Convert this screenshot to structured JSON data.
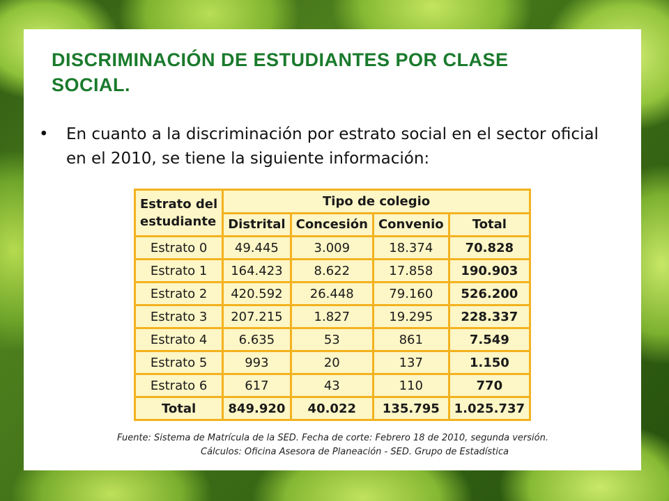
{
  "slide": {
    "title": "DISCRIMINACIÓN DE ESTUDIANTES POR CLASE SOCIAL.",
    "bullet": "En cuanto a la discriminación por estrato social en el sector oficial en el 2010, se tiene la siguiente información:",
    "bullet_symbol": "•"
  },
  "table": {
    "row_header_label": "Estrato del estudiante",
    "group_header": "Tipo de colegio",
    "columns": [
      "Distrital",
      "Concesión",
      "Convenio",
      "Total"
    ],
    "rows": [
      {
        "label": "Estrato 0",
        "values": [
          "49.445",
          "3.009",
          "18.374",
          "70.828"
        ]
      },
      {
        "label": "Estrato 1",
        "values": [
          "164.423",
          "8.622",
          "17.858",
          "190.903"
        ]
      },
      {
        "label": "Estrato 2",
        "values": [
          "420.592",
          "26.448",
          "79.160",
          "526.200"
        ]
      },
      {
        "label": "Estrato 3",
        "values": [
          "207.215",
          "1.827",
          "19.295",
          "228.337"
        ]
      },
      {
        "label": "Estrato 4",
        "values": [
          "6.635",
          "53",
          "861",
          "7.549"
        ]
      },
      {
        "label": "Estrato 5",
        "values": [
          "993",
          "20",
          "137",
          "1.150"
        ]
      },
      {
        "label": "Estrato 6",
        "values": [
          "617",
          "43",
          "110",
          "770"
        ]
      }
    ],
    "total_row": {
      "label": "Total",
      "values": [
        "849.920",
        "40.022",
        "135.795",
        "1.025.737"
      ]
    }
  },
  "footnote": {
    "line1": "Fuente: Sistema de Matrícula de la SED. Fecha de corte: Febrero 18 de 2010, segunda versión.",
    "line2": "Cálculos: Oficina Asesora de Planeación - SED. Grupo de Estadística"
  },
  "colors": {
    "title": "#1a7a2c",
    "table_border": "#f3b21f",
    "table_fill": "#fdf6c6"
  }
}
